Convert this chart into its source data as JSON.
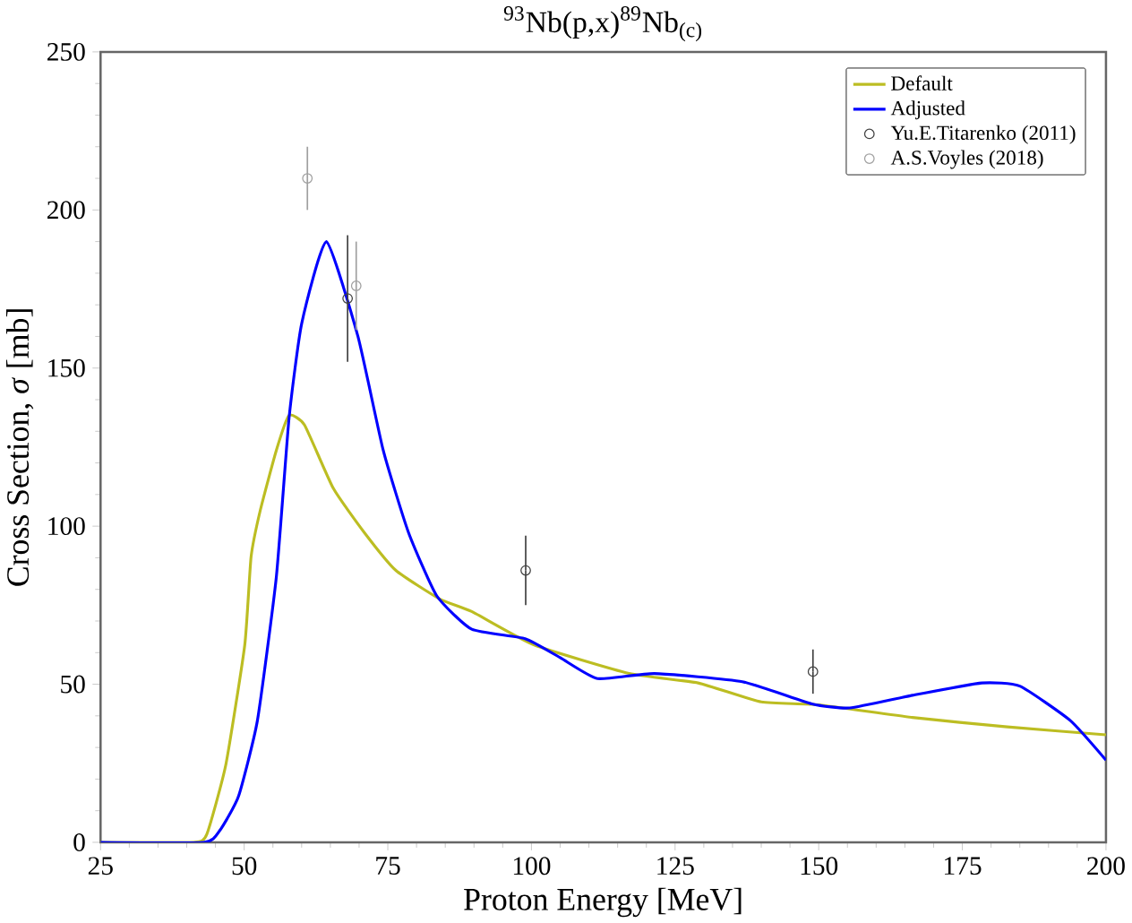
{
  "chart_data": {
    "type": "line",
    "title": "$^{93}$Nb(p,x)$^{89}$Nb$_{(c)}$",
    "xlabel": "Proton Energy [MeV]",
    "ylabel": "Cross Section, *σ* [mb]",
    "xlim": [
      25,
      200
    ],
    "ylim": [
      0,
      250
    ],
    "xticks": [
      25,
      50,
      75,
      100,
      125,
      150,
      175,
      200
    ],
    "yticks": [
      0,
      50,
      100,
      150,
      200,
      250
    ],
    "legend": "top right",
    "marker": "none",
    "line_style": "solid",
    "series": [
      {
        "name": "Default",
        "color": "#bcbd22",
        "x": [
          25,
          41.2,
          43.5,
          46.8,
          50.1,
          51.2,
          52.8,
          55.6,
          57.8,
          60.5,
          65.5,
          70.9,
          76.4,
          84,
          89.6,
          100.5,
          117,
          129,
          140,
          149.9,
          166.3,
          182.8,
          200
        ],
        "values": [
          0,
          0,
          2.6,
          24.5,
          62.4,
          90.3,
          105,
          124,
          135,
          132,
          112,
          98,
          86,
          77,
          73,
          62.4,
          53.4,
          50.4,
          44.4,
          43.5,
          39.5,
          36.5,
          34
        ]
      },
      {
        "name": "Adjusted",
        "color": "#0000ff",
        "x": [
          25,
          43,
          45.7,
          49,
          52.3,
          55.6,
          57.8,
          60,
          64.3,
          69.8,
          74.2,
          78.6,
          83.5,
          89.6,
          98.9,
          105,
          111.5,
          121.4,
          136.7,
          148.8,
          155.4,
          166.3,
          178.4,
          185,
          193.8,
          200
        ],
        "values": [
          0,
          0,
          3.6,
          14.5,
          38.5,
          84,
          134,
          164,
          190,
          160,
          124,
          98,
          78,
          67.4,
          64.4,
          58.4,
          51.8,
          53.4,
          50.8,
          43.8,
          42.5,
          46.5,
          50.4,
          49.4,
          38.5,
          26
        ]
      },
      {
        "name": "Yu.E.Titarenko (2011)",
        "type": "scatter",
        "marker": "circle",
        "color": "#404040",
        "x": [
          68,
          99,
          149
        ],
        "values": [
          172,
          86,
          54
        ],
        "errors": [
          20,
          11,
          7
        ]
      },
      {
        "name": "A.S.Voyles (2018)",
        "type": "scatter",
        "marker": "circle",
        "color": "#a0a0a0",
        "x": [
          61,
          69.5
        ],
        "values": [
          210,
          176
        ],
        "errors": [
          10,
          14
        ]
      }
    ]
  }
}
